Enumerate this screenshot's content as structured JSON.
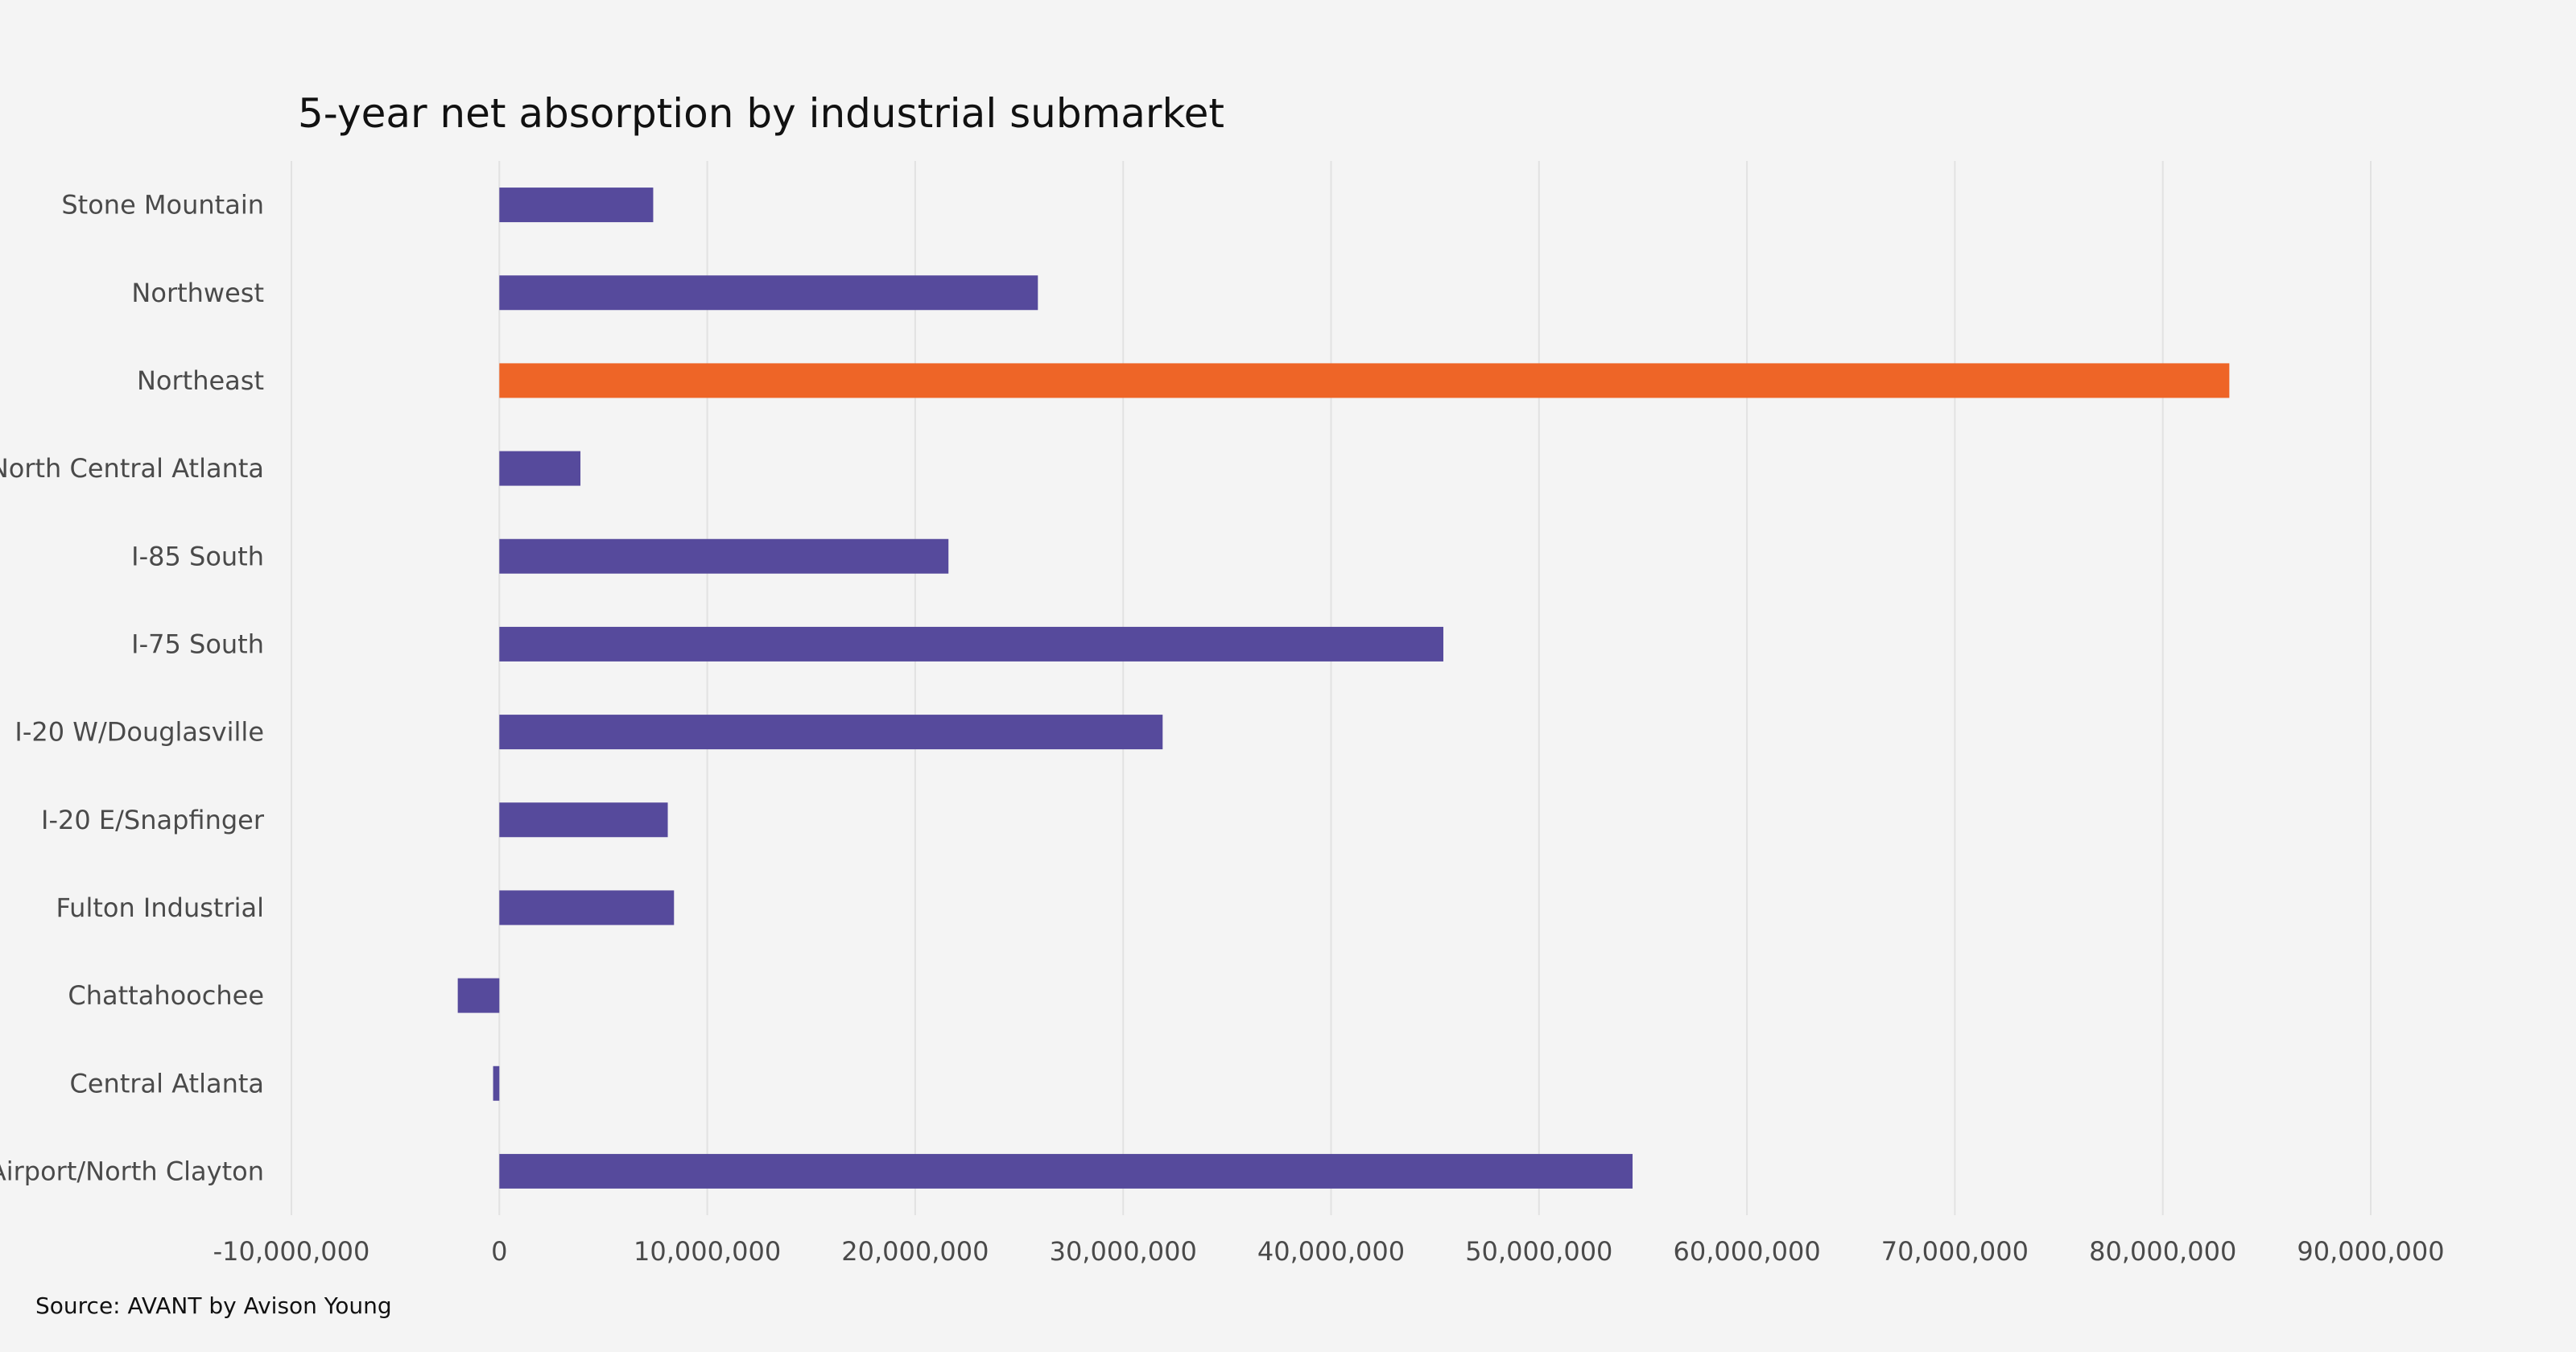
{
  "chart_data": {
    "type": "bar",
    "orientation": "horizontal",
    "title": "5-year net absorption by industrial submarket",
    "source": "Source: AVANT by Avison Young",
    "categories": [
      "Stone Mountain",
      "Northwest",
      "Northeast",
      "North Central Atlanta",
      "I-85 South",
      "I-75 South",
      "I-20 W/Douglasville",
      "I-20 E/Snapfinger",
      "Fulton Industrial",
      "Chattahoochee",
      "Central Atlanta",
      "Airport/North Clayton"
    ],
    "values": [
      7400000,
      25900000,
      83200000,
      3900000,
      21600000,
      45400000,
      31900000,
      8100000,
      8400000,
      -2000000,
      -300000,
      54500000
    ],
    "highlight_category": "Northeast",
    "xlim": [
      -10000000,
      90000000
    ],
    "xticks": [
      -10000000,
      0,
      10000000,
      20000000,
      30000000,
      40000000,
      50000000,
      60000000,
      70000000,
      80000000,
      90000000
    ],
    "xtick_labels": [
      "-10,000,000",
      "0",
      "10,000,000",
      "20,000,000",
      "30,000,000",
      "40,000,000",
      "50,000,000",
      "60,000,000",
      "70,000,000",
      "80,000,000",
      "90,000,000"
    ],
    "xlabel": "",
    "ylabel": "",
    "grid": true,
    "legend": "none",
    "colors": {
      "bar": "#564a9c",
      "highlight": "#ee6527",
      "grid": "#e2e2e2",
      "background": "#f4f4f4"
    }
  }
}
